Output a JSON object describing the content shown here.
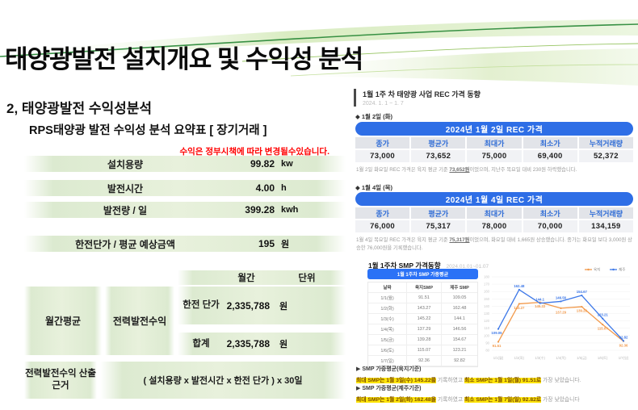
{
  "slide": {
    "title": "태양광발전 설치개요 및 수익성 분석",
    "section_title": "2, 태양광발전 수익성분석",
    "summary_title": "RPS태양광 발전 수익성 분석 요약표 [ 장기거래 ]",
    "notice": "수익은 정부시책에 따라 변경될수있습니다."
  },
  "summary_table": {
    "rows": [
      {
        "label": "설치용량",
        "value": "99.82",
        "unit": "kw"
      },
      {
        "label": "발전시간",
        "value": "4.00",
        "unit": "h"
      },
      {
        "label": "발전량 / 일",
        "value": "399.28",
        "unit": "kwh"
      },
      {
        "label": "한전단가 / 평균 예상금액",
        "value": "195",
        "unit": "원"
      }
    ],
    "period_header": "월간",
    "unit_header": "단위",
    "monthly_label": "월간평균",
    "revenue_label": "전력발전수익",
    "detail_rows": [
      {
        "label": "한전 단가",
        "value": "2,335,788",
        "unit": "원"
      },
      {
        "label": "합계",
        "value": "2,335,788",
        "unit": "원"
      }
    ],
    "basis_label": "전력발전수익 산출근거",
    "basis_value": "( 설치용량 x 발전시간 x 한전 단가 ) x 30일"
  },
  "rec_panel": {
    "header": "1월 1주 차 태양광 사업 REC 가격 동향",
    "period": "2024. 1. 1 ~ 1. 7",
    "columns": [
      "종가",
      "평균가",
      "최대가",
      "최소가",
      "누적거래량"
    ],
    "days": [
      {
        "label": "◆ 1월 2일 (화)",
        "title": "2024년 1월 2일 REC 가격",
        "values": [
          "73,000",
          "73,652",
          "75,000",
          "69,400",
          "52,372"
        ],
        "note_prefix": "1월 2일 화요일 REC 가격은 육지 평균 기준 ",
        "note_em": "73,652원",
        "note_suffix": "이었으며, 지난주 목요일 대비 230원 하락했습니다."
      },
      {
        "label": "◆ 1월 4일 (목)",
        "title": "2024년 1월 4일 REC 가격",
        "values": [
          "76,000",
          "75,317",
          "78,000",
          "70,000",
          "134,159"
        ],
        "note_prefix": "1월 4일 목요일 REC 가격은 육지 평균 기준 ",
        "note_em": "75,317원",
        "note_suffix": "이었으며, 화요일 대비 1,665원 상승했습니다. 종가는 화요일 보다 3,000원 상승한 76,000원을 기록했습니다."
      }
    ]
  },
  "smp_section": {
    "title": "1월 1주차 SMP 가격동향",
    "period": "2024.01.01~01.07",
    "table_header": "1월 1주차 SMP 가중평균",
    "columns": [
      "날짜",
      "육지SMP",
      "제주 SMP"
    ],
    "rows": [
      [
        "1/1(월)",
        "91.51",
        "109.05"
      ],
      [
        "1/2(화)",
        "143.27",
        "162.48"
      ],
      [
        "1/3(수)",
        "145.22",
        "144.1"
      ],
      [
        "1/4(목)",
        "137.29",
        "146.56"
      ],
      [
        "1/5(금)",
        "139.28",
        "154.67"
      ],
      [
        "1/6(토)",
        "115.07",
        "123.21"
      ],
      [
        "1/7(일)",
        "92.36",
        "92.82"
      ]
    ],
    "summaries": [
      {
        "heading": "▶ SMP 가중평균(육지기준)",
        "hl1": "최대 SMP는 1월 3일(수) 145.22를",
        "mid": " 기록하였고 ",
        "hl2": "최소 SMP는 1월 1일(월) 91.51로",
        "tail": " 가장 낮았습니다."
      },
      {
        "heading": "▶ SMP 가중평균(제주기준)",
        "hl1": "최대 SMP는 1월 2일(화) 162.48을",
        "mid": " 기록하였고 ",
        "hl2": "최소 SMP는 1월 7일(일) 92.82로",
        "tail": " 가장 낮았습니다"
      }
    ]
  },
  "chart_data": {
    "type": "line",
    "title": "1월 1주차 SMP 가격동향",
    "x": [
      "1/1(월)",
      "1/2(화)",
      "1/3(수)",
      "1/4(목)",
      "1/5(금)",
      "1/6(토)",
      "1/7(일)"
    ],
    "series": [
      {
        "name": "육지",
        "color": "#f2994a",
        "values": [
          91.51,
          143.27,
          145.22,
          137.29,
          139.28,
          115.07,
          92.36
        ]
      },
      {
        "name": "제주",
        "color": "#3d78e8",
        "values": [
          109.05,
          162.48,
          144.1,
          146.56,
          154.67,
          123.21,
          92.82
        ]
      }
    ],
    "ylim": [
      80,
      180
    ],
    "ytick_step": 10,
    "grid": true,
    "legend_position": "top-right"
  },
  "colors": {
    "rec_header_bg": "#2e6ee6",
    "rec_col_text": "#2f6cd6",
    "smp_header_bg": "#2b72f6",
    "highlight_bg": "#ffe60a",
    "table_green": "#e7f0db",
    "notice_red": "#ff0000"
  }
}
